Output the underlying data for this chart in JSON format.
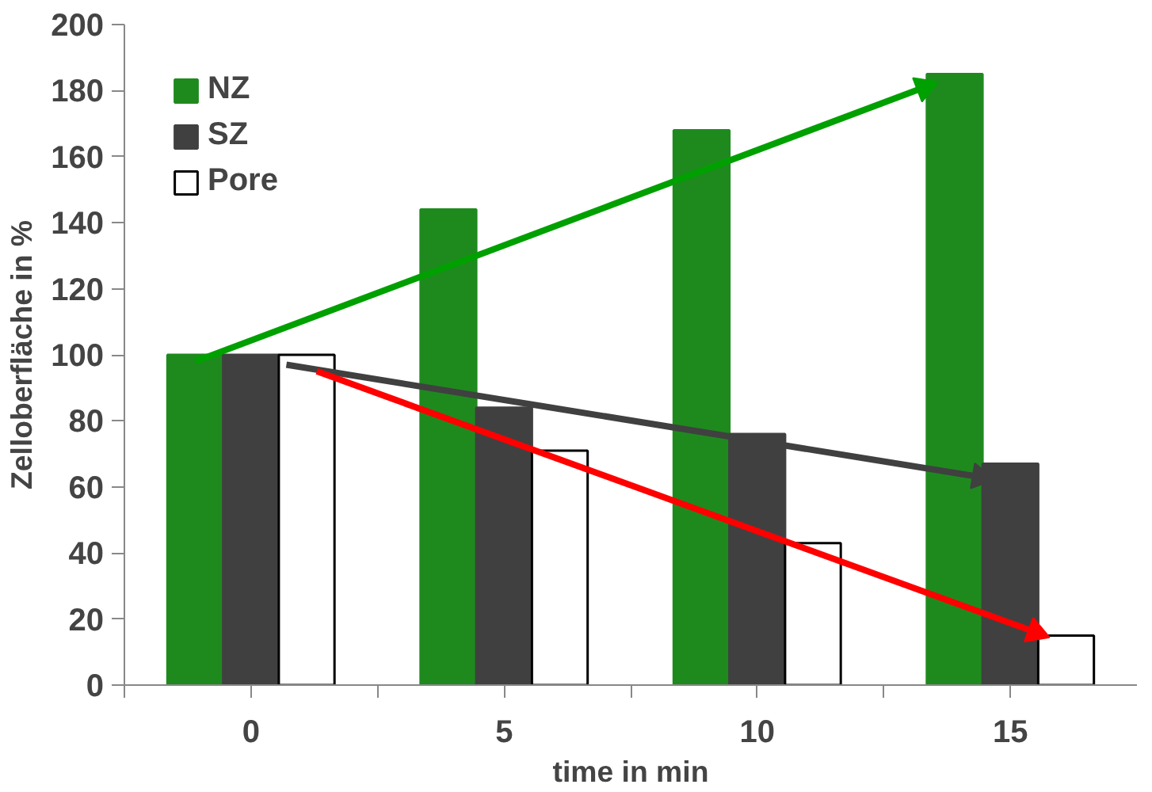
{
  "chart_data": {
    "type": "bar",
    "xlabel": "time in min",
    "ylabel": "Zelloberfläche in %",
    "x": [
      0,
      5,
      10,
      15
    ],
    "xlim": [
      -2.5,
      17.5
    ],
    "xticks": [
      {
        "value": -2.5,
        "label": null
      },
      0,
      {
        "value": 2.5,
        "label": null
      },
      5,
      {
        "value": 7.5,
        "label": null
      },
      10,
      {
        "value": 12.5,
        "label": null
      },
      15
    ],
    "ylim": [
      0,
      200
    ],
    "yticks": [
      0,
      20,
      40,
      60,
      80,
      100,
      120,
      140,
      160,
      180,
      200
    ],
    "grid": false,
    "legend": "top left",
    "series": [
      {
        "name": "NZ",
        "color": "#1e8a1e",
        "values": [
          100,
          144,
          168,
          185
        ]
      },
      {
        "name": "SZ",
        "color": "#404040",
        "values": [
          100,
          84,
          76,
          67
        ]
      },
      {
        "name": "Pore",
        "color": "#ffffff",
        "values": [
          100,
          71,
          43,
          15
        ]
      },
      {
        "type": "line",
        "color": "#00a000",
        "x": [
          -1.1,
          13.3
        ],
        "values": [
          98,
          181
        ]
      },
      {
        "type": "line",
        "color": "#404040",
        "x": [
          0.7,
          14.4
        ],
        "values": [
          97,
          63
        ]
      },
      {
        "type": "line",
        "color": "#ff0000",
        "x": [
          1.3,
          15.5
        ],
        "values": [
          95,
          16
        ]
      }
    ]
  }
}
